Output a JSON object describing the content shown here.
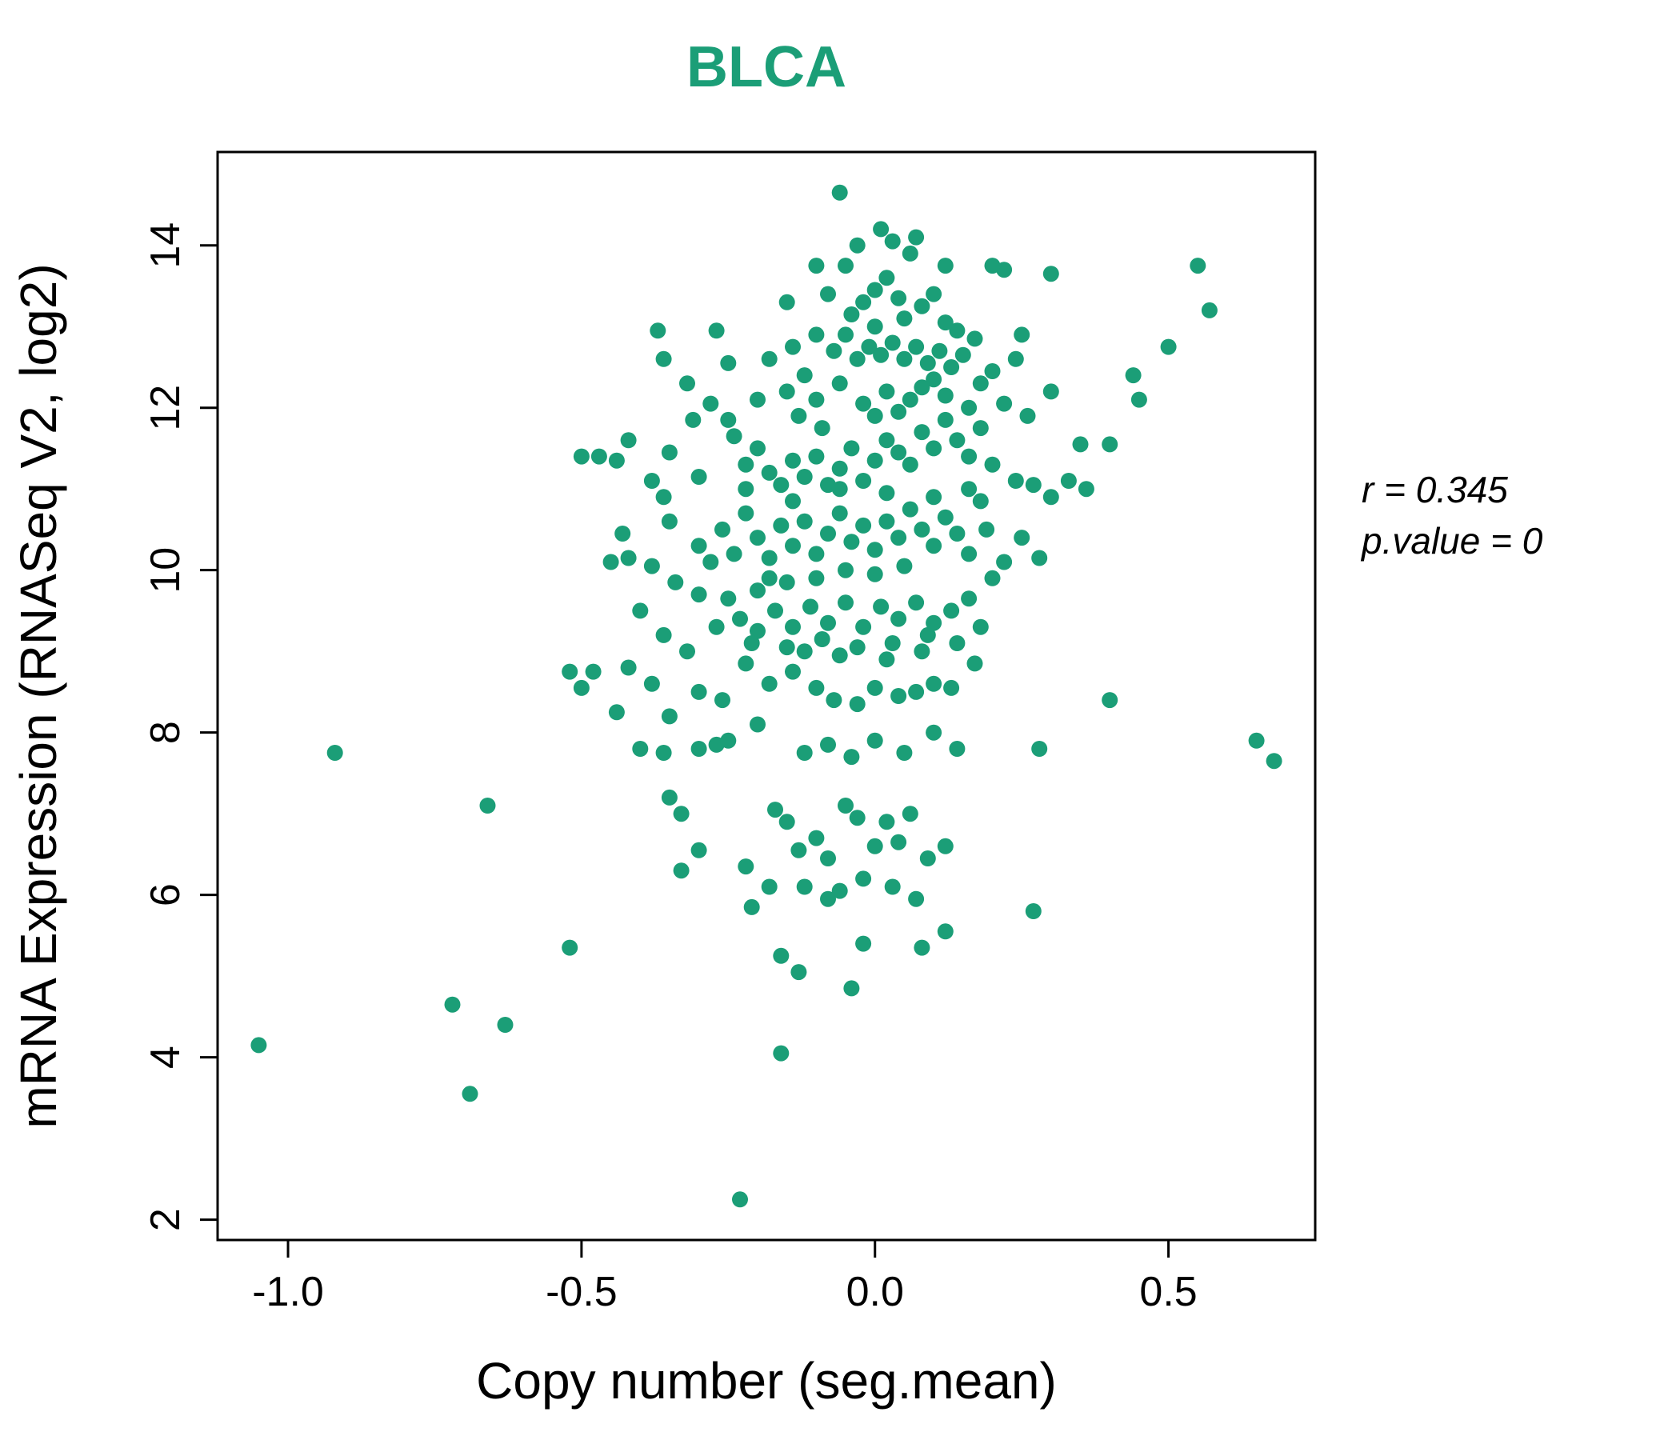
{
  "chart_data": {
    "type": "scatter",
    "title": "BLCA",
    "xlabel": "Copy number (seg.mean)",
    "ylabel": "mRNA Expression (RNASeq V2, log2)",
    "xlim": [
      -1.12,
      0.75
    ],
    "ylim": [
      1.75,
      15.15
    ],
    "xticks": [
      -1.0,
      -0.5,
      0.0,
      0.5
    ],
    "xtick_labels": [
      "-1.0",
      "-0.5",
      "0.0",
      "0.5"
    ],
    "yticks": [
      2,
      4,
      6,
      8,
      10,
      12,
      14
    ],
    "ytick_labels": [
      "2",
      "4",
      "6",
      "8",
      "10",
      "12",
      "14"
    ],
    "grid": false,
    "legend": "none",
    "annotation": {
      "line1": "r = 0.345",
      "line2": "p.value = 0"
    },
    "point_color": "#1B9E77",
    "title_color": "#1B9E77",
    "axis_color": "#000000",
    "points": [
      [
        -1.05,
        4.15
      ],
      [
        -0.92,
        7.75
      ],
      [
        -0.72,
        4.65
      ],
      [
        -0.69,
        3.55
      ],
      [
        -0.66,
        7.1
      ],
      [
        -0.63,
        4.4
      ],
      [
        -0.52,
        5.35
      ],
      [
        -0.23,
        2.25
      ],
      [
        -0.16,
        4.05
      ],
      [
        -0.16,
        5.25
      ],
      [
        -0.13,
        5.05
      ],
      [
        -0.04,
        4.85
      ],
      [
        -0.02,
        5.4
      ],
      [
        0.08,
        5.35
      ],
      [
        0.12,
        5.55
      ],
      [
        0.27,
        5.8
      ],
      [
        -0.21,
        5.85
      ],
      [
        -0.18,
        6.1
      ],
      [
        -0.22,
        6.35
      ],
      [
        -0.3,
        6.55
      ],
      [
        -0.33,
        6.3
      ],
      [
        -0.35,
        7.2
      ],
      [
        -0.33,
        7.0
      ],
      [
        -0.36,
        7.75
      ],
      [
        -0.3,
        7.8
      ],
      [
        -0.27,
        7.85
      ],
      [
        -0.17,
        7.05
      ],
      [
        -0.15,
        6.9
      ],
      [
        -0.13,
        6.55
      ],
      [
        -0.1,
        6.7
      ],
      [
        -0.08,
        6.45
      ],
      [
        -0.05,
        7.1
      ],
      [
        -0.03,
        6.95
      ],
      [
        0.0,
        6.6
      ],
      [
        0.02,
        6.9
      ],
      [
        0.04,
        6.65
      ],
      [
        0.06,
        7.0
      ],
      [
        0.09,
        6.45
      ],
      [
        0.12,
        6.6
      ],
      [
        -0.12,
        6.1
      ],
      [
        -0.08,
        5.95
      ],
      [
        -0.02,
        6.2
      ],
      [
        0.03,
        6.1
      ],
      [
        0.07,
        5.95
      ],
      [
        -0.06,
        6.05
      ],
      [
        0.1,
        8.0
      ],
      [
        0.14,
        7.8
      ],
      [
        0.05,
        7.75
      ],
      [
        0.0,
        7.9
      ],
      [
        -0.04,
        7.7
      ],
      [
        -0.08,
        7.85
      ],
      [
        -0.12,
        7.75
      ],
      [
        -0.2,
        8.1
      ],
      [
        -0.25,
        7.9
      ],
      [
        -0.4,
        7.8
      ],
      [
        -0.44,
        8.25
      ],
      [
        -0.35,
        8.2
      ],
      [
        -0.3,
        8.5
      ],
      [
        -0.5,
        8.55
      ],
      [
        -0.52,
        8.75
      ],
      [
        -0.48,
        8.75
      ],
      [
        -0.42,
        8.8
      ],
      [
        -0.38,
        8.6
      ],
      [
        0.65,
        7.9
      ],
      [
        0.68,
        7.65
      ],
      [
        0.28,
        7.8
      ],
      [
        0.4,
        8.4
      ],
      [
        0.17,
        8.85
      ],
      [
        0.13,
        8.55
      ],
      [
        0.1,
        8.6
      ],
      [
        0.07,
        8.5
      ],
      [
        0.04,
        8.45
      ],
      [
        0.0,
        8.55
      ],
      [
        -0.03,
        8.35
      ],
      [
        -0.07,
        8.4
      ],
      [
        -0.1,
        8.55
      ],
      [
        -0.14,
        8.75
      ],
      [
        -0.18,
        8.6
      ],
      [
        -0.22,
        8.85
      ],
      [
        -0.26,
        8.4
      ],
      [
        -0.32,
        9.0
      ],
      [
        -0.36,
        9.2
      ],
      [
        -0.4,
        9.5
      ],
      [
        -0.45,
        10.1
      ],
      [
        -0.43,
        10.45
      ],
      [
        -0.47,
        11.4
      ],
      [
        -0.44,
        11.35
      ],
      [
        -0.42,
        11.6
      ],
      [
        -0.38,
        11.1
      ],
      [
        -0.36,
        10.9
      ],
      [
        -0.35,
        11.45
      ],
      [
        -0.37,
        12.95
      ],
      [
        -0.32,
        12.3
      ],
      [
        -0.28,
        12.05
      ],
      [
        -0.25,
        11.85
      ],
      [
        -0.24,
        11.65
      ],
      [
        -0.22,
        11.3
      ],
      [
        -0.2,
        11.5
      ],
      [
        -0.18,
        11.2
      ],
      [
        -0.16,
        11.05
      ],
      [
        -0.14,
        11.35
      ],
      [
        -0.12,
        11.15
      ],
      [
        -0.1,
        11.4
      ],
      [
        -0.08,
        11.05
      ],
      [
        -0.06,
        11.25
      ],
      [
        -0.04,
        11.5
      ],
      [
        -0.02,
        11.1
      ],
      [
        0.0,
        11.35
      ],
      [
        0.02,
        11.6
      ],
      [
        0.04,
        11.45
      ],
      [
        0.06,
        11.3
      ],
      [
        0.08,
        11.7
      ],
      [
        0.1,
        11.5
      ],
      [
        0.12,
        11.85
      ],
      [
        0.14,
        11.6
      ],
      [
        0.16,
        11.4
      ],
      [
        0.18,
        11.75
      ],
      [
        0.2,
        11.3
      ],
      [
        0.24,
        11.1
      ],
      [
        0.27,
        11.05
      ],
      [
        0.3,
        12.2
      ],
      [
        0.35,
        11.55
      ],
      [
        0.45,
        12.1
      ],
      [
        0.5,
        12.75
      ],
      [
        0.55,
        13.75
      ],
      [
        0.57,
        13.2
      ],
      [
        0.3,
        13.65
      ],
      [
        0.22,
        13.7
      ],
      [
        0.25,
        12.9
      ],
      [
        0.17,
        12.85
      ],
      [
        0.15,
        12.65
      ],
      [
        0.13,
        12.5
      ],
      [
        0.11,
        12.7
      ],
      [
        0.09,
        12.55
      ],
      [
        0.07,
        12.75
      ],
      [
        0.05,
        12.6
      ],
      [
        0.03,
        12.8
      ],
      [
        0.01,
        12.65
      ],
      [
        -0.01,
        12.75
      ],
      [
        -0.03,
        12.6
      ],
      [
        -0.05,
        12.9
      ],
      [
        -0.07,
        12.7
      ],
      [
        -0.02,
        13.3
      ],
      [
        0.0,
        13.45
      ],
      [
        0.02,
        13.6
      ],
      [
        0.04,
        13.35
      ],
      [
        -0.05,
        13.75
      ],
      [
        -0.03,
        14.0
      ],
      [
        0.01,
        14.2
      ],
      [
        0.03,
        14.05
      ],
      [
        -0.08,
        13.4
      ],
      [
        -0.12,
        12.4
      ],
      [
        -0.15,
        12.2
      ],
      [
        -0.18,
        12.6
      ],
      [
        -0.27,
        12.95
      ],
      [
        -0.06,
        14.65
      ],
      [
        0.06,
        13.9
      ],
      [
        0.1,
        13.4
      ],
      [
        0.12,
        13.05
      ],
      [
        0.14,
        12.95
      ],
      [
        0.18,
        12.3
      ],
      [
        0.22,
        12.05
      ],
      [
        0.26,
        11.9
      ],
      [
        -0.1,
        12.1
      ],
      [
        -0.13,
        11.9
      ],
      [
        -0.2,
        12.1
      ],
      [
        -0.35,
        10.6
      ],
      [
        -0.3,
        10.3
      ],
      [
        -0.28,
        10.1
      ],
      [
        -0.26,
        10.5
      ],
      [
        -0.24,
        10.2
      ],
      [
        -0.22,
        10.7
      ],
      [
        -0.2,
        10.4
      ],
      [
        -0.18,
        10.15
      ],
      [
        -0.16,
        10.55
      ],
      [
        -0.14,
        10.3
      ],
      [
        -0.12,
        10.6
      ],
      [
        -0.1,
        10.2
      ],
      [
        -0.08,
        10.45
      ],
      [
        -0.06,
        10.7
      ],
      [
        -0.04,
        10.35
      ],
      [
        -0.02,
        10.55
      ],
      [
        0.0,
        10.25
      ],
      [
        0.02,
        10.6
      ],
      [
        0.04,
        10.4
      ],
      [
        0.06,
        10.75
      ],
      [
        0.08,
        10.5
      ],
      [
        0.1,
        10.3
      ],
      [
        0.12,
        10.65
      ],
      [
        0.14,
        10.45
      ],
      [
        0.16,
        10.2
      ],
      [
        0.05,
        10.05
      ],
      [
        0.0,
        9.95
      ],
      [
        -0.05,
        10.0
      ],
      [
        -0.1,
        9.9
      ],
      [
        -0.15,
        9.85
      ],
      [
        -0.2,
        9.75
      ],
      [
        -0.25,
        9.65
      ],
      [
        -0.3,
        9.7
      ],
      [
        -0.34,
        9.85
      ],
      [
        -0.38,
        10.05
      ],
      [
        -0.23,
        9.4
      ],
      [
        -0.2,
        9.25
      ],
      [
        -0.17,
        9.5
      ],
      [
        -0.14,
        9.3
      ],
      [
        -0.11,
        9.55
      ],
      [
        -0.08,
        9.35
      ],
      [
        -0.05,
        9.6
      ],
      [
        -0.02,
        9.3
      ],
      [
        0.01,
        9.55
      ],
      [
        0.04,
        9.4
      ],
      [
        0.07,
        9.6
      ],
      [
        0.1,
        9.35
      ],
      [
        0.13,
        9.5
      ],
      [
        0.16,
        9.65
      ],
      [
        0.09,
        9.2
      ],
      [
        0.03,
        9.1
      ],
      [
        -0.03,
        9.05
      ],
      [
        -0.09,
        9.15
      ],
      [
        -0.15,
        9.05
      ],
      [
        -0.21,
        9.1
      ],
      [
        -0.27,
        9.3
      ],
      [
        0.02,
        8.9
      ],
      [
        -0.06,
        8.95
      ],
      [
        -0.12,
        9.0
      ],
      [
        0.08,
        9.0
      ],
      [
        0.14,
        9.1
      ],
      [
        0.18,
        9.3
      ],
      [
        0.2,
        9.9
      ],
      [
        0.22,
        10.1
      ],
      [
        0.19,
        10.5
      ],
      [
        0.16,
        11.0
      ],
      [
        0.25,
        10.4
      ],
      [
        0.28,
        10.15
      ],
      [
        0.33,
        11.1
      ],
      [
        0.36,
        11.0
      ],
      [
        -0.42,
        10.15
      ],
      [
        -0.5,
        11.4
      ],
      [
        0.18,
        10.85
      ],
      [
        0.1,
        10.9
      ],
      [
        0.02,
        10.95
      ],
      [
        -0.06,
        11.0
      ],
      [
        -0.14,
        10.85
      ],
      [
        -0.22,
        11.0
      ],
      [
        -0.3,
        11.15
      ],
      [
        0.06,
        12.1
      ],
      [
        0.02,
        12.2
      ],
      [
        -0.02,
        12.05
      ],
      [
        0.0,
        11.9
      ],
      [
        0.04,
        11.95
      ],
      [
        0.08,
        12.25
      ],
      [
        -0.06,
        12.3
      ],
      [
        -0.09,
        11.75
      ],
      [
        0.12,
        12.15
      ],
      [
        0.16,
        12.0
      ],
      [
        0.2,
        12.45
      ],
      [
        0.24,
        12.6
      ],
      [
        0.1,
        12.35
      ],
      [
        0.05,
        13.1
      ],
      [
        0.0,
        13.0
      ],
      [
        -0.04,
        13.15
      ],
      [
        0.08,
        13.25
      ],
      [
        -0.1,
        12.9
      ],
      [
        -0.14,
        12.75
      ],
      [
        -0.36,
        12.6
      ],
      [
        -0.25,
        12.55
      ],
      [
        0.2,
        13.75
      ],
      [
        0.12,
        13.75
      ],
      [
        -0.1,
        13.75
      ],
      [
        -0.15,
        13.3
      ],
      [
        -0.31,
        11.85
      ],
      [
        0.4,
        11.55
      ],
      [
        0.07,
        14.1
      ],
      [
        -0.18,
        9.9
      ],
      [
        0.3,
        10.9
      ],
      [
        0.44,
        12.4
      ]
    ]
  }
}
